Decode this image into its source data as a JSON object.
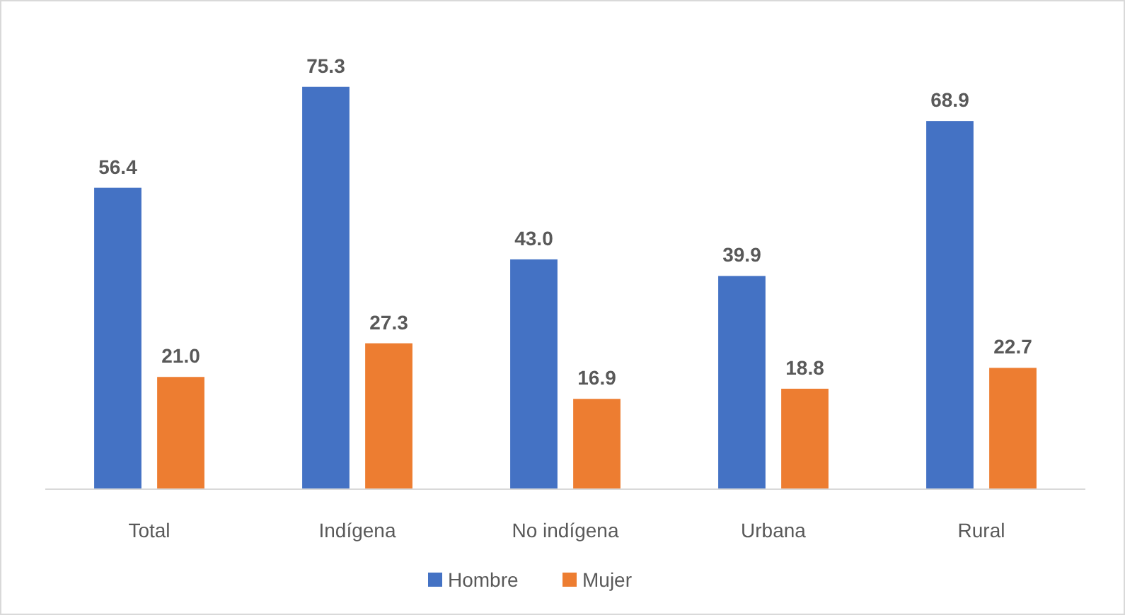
{
  "chart_data": {
    "type": "bar",
    "categories": [
      "Total",
      "Indígena",
      "No indígena",
      "Urbana",
      "Rural"
    ],
    "series": [
      {
        "name": "Hombre",
        "color": "#4472c4",
        "values": [
          56.4,
          75.3,
          43.0,
          39.9,
          68.9
        ],
        "value_labels": [
          "56.4",
          "75.3",
          "43.0",
          "39.9",
          "68.9"
        ]
      },
      {
        "name": "Mujer",
        "color": "#ed7d31",
        "values": [
          21.0,
          27.3,
          16.9,
          18.8,
          22.7
        ],
        "value_labels": [
          "21.0",
          "27.3",
          "16.9",
          "18.8",
          "22.7"
        ]
      }
    ],
    "legend": "bottom"
  }
}
